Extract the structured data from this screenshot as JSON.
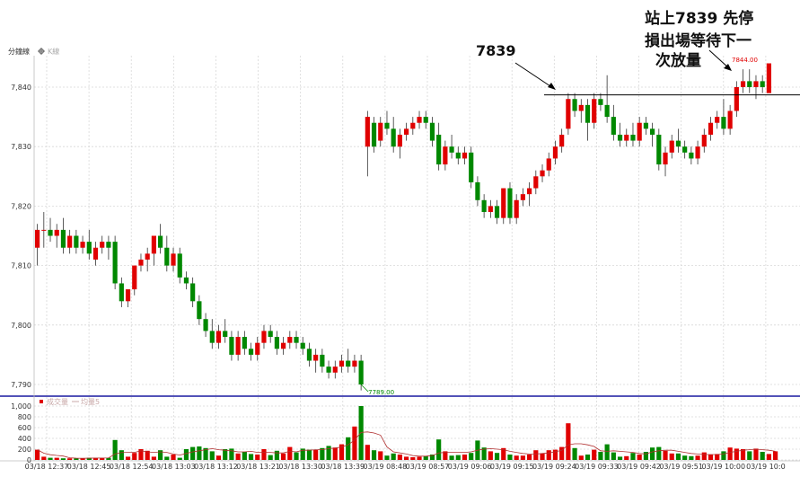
{
  "header": {
    "title": "分鐘線",
    "kline_label": "K線",
    "kline_icon": "gear-icon"
  },
  "colors": {
    "up": "#e00000",
    "down": "#008800",
    "ma_line": "#b03030",
    "separator": "#1a1aa0",
    "grid": "#d8d8d8",
    "note_line": "#000000"
  },
  "chart_data": [
    {
      "type": "candlestick",
      "title": "分鐘線",
      "ylim": [
        7788,
        7845
      ],
      "y_ticks": [
        7790,
        7800,
        7810,
        7820,
        7830,
        7840
      ],
      "y_tick_labels": [
        "7,790",
        "7,800",
        "7,810",
        "7,820",
        "7,830",
        "7,840"
      ],
      "x_tick_labels": [
        "03/18 12:37",
        "03/18 12:45",
        "03/18 12:54",
        "03/18 13:03",
        "03/18 13:12",
        "03/18 13:21",
        "03/18 13:30",
        "03/18 13:39",
        "03/19 08:48",
        "03/19 08:57",
        "03/19 09:06",
        "03/19 09:15",
        "03/19 09:24",
        "03/19 09:33",
        "03/19 09:42",
        "03/19 09:51",
        "03/19 10:00",
        "03/19 10:0"
      ],
      "grid": true,
      "candles": [
        {
          "o": 7813,
          "h": 7817,
          "l": 7810,
          "c": 7816
        },
        {
          "o": 7816,
          "h": 7819,
          "l": 7813,
          "c": 7816
        },
        {
          "o": 7816,
          "h": 7818,
          "l": 7814,
          "c": 7815
        },
        {
          "o": 7815,
          "h": 7817,
          "l": 7813,
          "c": 7816
        },
        {
          "o": 7816,
          "h": 7818,
          "l": 7812,
          "c": 7813
        },
        {
          "o": 7813,
          "h": 7816,
          "l": 7812,
          "c": 7815
        },
        {
          "o": 7815,
          "h": 7816,
          "l": 7812,
          "c": 7813
        },
        {
          "o": 7813,
          "h": 7815,
          "l": 7812,
          "c": 7814
        },
        {
          "o": 7814,
          "h": 7816,
          "l": 7811,
          "c": 7812
        },
        {
          "o": 7811,
          "h": 7814,
          "l": 7810,
          "c": 7813
        },
        {
          "o": 7813,
          "h": 7815,
          "l": 7812,
          "c": 7814
        },
        {
          "o": 7814,
          "h": 7815,
          "l": 7811,
          "c": 7813
        },
        {
          "o": 7814,
          "h": 7815,
          "l": 7806,
          "c": 7807
        },
        {
          "o": 7807,
          "h": 7808,
          "l": 7803,
          "c": 7804
        },
        {
          "o": 7804,
          "h": 7806,
          "l": 7803,
          "c": 7806
        },
        {
          "o": 7806,
          "h": 7810,
          "l": 7805,
          "c": 7810
        },
        {
          "o": 7810,
          "h": 7812,
          "l": 7809,
          "c": 7811
        },
        {
          "o": 7811,
          "h": 7813,
          "l": 7809,
          "c": 7812
        },
        {
          "o": 7812,
          "h": 7815,
          "l": 7810,
          "c": 7815
        },
        {
          "o": 7815,
          "h": 7817,
          "l": 7812,
          "c": 7813
        },
        {
          "o": 7813,
          "h": 7815,
          "l": 7809,
          "c": 7810
        },
        {
          "o": 7810,
          "h": 7813,
          "l": 7809,
          "c": 7812
        },
        {
          "o": 7812,
          "h": 7813,
          "l": 7807,
          "c": 7808
        },
        {
          "o": 7808,
          "h": 7809,
          "l": 7806,
          "c": 7807
        },
        {
          "o": 7807,
          "h": 7808,
          "l": 7803,
          "c": 7804
        },
        {
          "o": 7804,
          "h": 7805,
          "l": 7800,
          "c": 7801
        },
        {
          "o": 7801,
          "h": 7802,
          "l": 7798,
          "c": 7799
        },
        {
          "o": 7799,
          "h": 7801,
          "l": 7796,
          "c": 7797
        },
        {
          "o": 7797,
          "h": 7800,
          "l": 7796,
          "c": 7799
        },
        {
          "o": 7799,
          "h": 7801,
          "l": 7797,
          "c": 7798
        },
        {
          "o": 7798,
          "h": 7799,
          "l": 7794,
          "c": 7795
        },
        {
          "o": 7795,
          "h": 7799,
          "l": 7794,
          "c": 7798
        },
        {
          "o": 7798,
          "h": 7799,
          "l": 7795,
          "c": 7796
        },
        {
          "o": 7796,
          "h": 7797,
          "l": 7794,
          "c": 7795
        },
        {
          "o": 7795,
          "h": 7798,
          "l": 7794,
          "c": 7797
        },
        {
          "o": 7797,
          "h": 7800,
          "l": 7796,
          "c": 7799
        },
        {
          "o": 7799,
          "h": 7800,
          "l": 7797,
          "c": 7798
        },
        {
          "o": 7798,
          "h": 7799,
          "l": 7795,
          "c": 7796
        },
        {
          "o": 7796,
          "h": 7798,
          "l": 7795,
          "c": 7797
        },
        {
          "o": 7797,
          "h": 7799,
          "l": 7796,
          "c": 7798
        },
        {
          "o": 7798,
          "h": 7799,
          "l": 7796,
          "c": 7797
        },
        {
          "o": 7797,
          "h": 7798,
          "l": 7795,
          "c": 7796
        },
        {
          "o": 7796,
          "h": 7797,
          "l": 7793,
          "c": 7794
        },
        {
          "o": 7794,
          "h": 7796,
          "l": 7792,
          "c": 7795
        },
        {
          "o": 7795,
          "h": 7796,
          "l": 7792,
          "c": 7793
        },
        {
          "o": 7793,
          "h": 7794,
          "l": 7791,
          "c": 7792
        },
        {
          "o": 7792,
          "h": 7794,
          "l": 7791,
          "c": 7793
        },
        {
          "o": 7793,
          "h": 7795,
          "l": 7792,
          "c": 7794
        },
        {
          "o": 7794,
          "h": 7796,
          "l": 7792,
          "c": 7793
        },
        {
          "o": 7793,
          "h": 7795,
          "l": 7792,
          "c": 7794
        },
        {
          "o": 7794,
          "h": 7795,
          "l": 7789,
          "c": 7790
        },
        {
          "o": 7830,
          "h": 7836,
          "l": 7825,
          "c": 7835
        },
        {
          "o": 7834,
          "h": 7835,
          "l": 7829,
          "c": 7830
        },
        {
          "o": 7831,
          "h": 7835,
          "l": 7830,
          "c": 7834
        },
        {
          "o": 7834,
          "h": 7836,
          "l": 7832,
          "c": 7833
        },
        {
          "o": 7833,
          "h": 7835,
          "l": 7829,
          "c": 7830
        },
        {
          "o": 7830,
          "h": 7833,
          "l": 7828,
          "c": 7832
        },
        {
          "o": 7832,
          "h": 7834,
          "l": 7831,
          "c": 7833
        },
        {
          "o": 7833,
          "h": 7835,
          "l": 7832,
          "c": 7834
        },
        {
          "o": 7834,
          "h": 7836,
          "l": 7833,
          "c": 7835
        },
        {
          "o": 7835,
          "h": 7836,
          "l": 7833,
          "c": 7834
        },
        {
          "o": 7834,
          "h": 7835,
          "l": 7830,
          "c": 7831
        },
        {
          "o": 7832,
          "h": 7834,
          "l": 7826,
          "c": 7827
        },
        {
          "o": 7827,
          "h": 7831,
          "l": 7826,
          "c": 7830
        },
        {
          "o": 7830,
          "h": 7832,
          "l": 7828,
          "c": 7829
        },
        {
          "o": 7829,
          "h": 7830,
          "l": 7827,
          "c": 7828
        },
        {
          "o": 7828,
          "h": 7830,
          "l": 7827,
          "c": 7829
        },
        {
          "o": 7829,
          "h": 7830,
          "l": 7823,
          "c": 7824
        },
        {
          "o": 7824,
          "h": 7825,
          "l": 7820,
          "c": 7821
        },
        {
          "o": 7821,
          "h": 7822,
          "l": 7818,
          "c": 7819
        },
        {
          "o": 7819,
          "h": 7821,
          "l": 7818,
          "c": 7820
        },
        {
          "o": 7820,
          "h": 7821,
          "l": 7817,
          "c": 7818
        },
        {
          "o": 7818,
          "h": 7823,
          "l": 7817,
          "c": 7823
        },
        {
          "o": 7823,
          "h": 7824,
          "l": 7817,
          "c": 7818
        },
        {
          "o": 7818,
          "h": 7822,
          "l": 7817,
          "c": 7821
        },
        {
          "o": 7821,
          "h": 7823,
          "l": 7820,
          "c": 7822
        },
        {
          "o": 7822,
          "h": 7824,
          "l": 7820,
          "c": 7823
        },
        {
          "o": 7823,
          "h": 7826,
          "l": 7822,
          "c": 7825
        },
        {
          "o": 7825,
          "h": 7827,
          "l": 7824,
          "c": 7826
        },
        {
          "o": 7826,
          "h": 7829,
          "l": 7825,
          "c": 7828
        },
        {
          "o": 7828,
          "h": 7831,
          "l": 7827,
          "c": 7830
        },
        {
          "o": 7830,
          "h": 7833,
          "l": 7829,
          "c": 7832
        },
        {
          "o": 7833,
          "h": 7839,
          "l": 7832,
          "c": 7838
        },
        {
          "o": 7838,
          "h": 7839,
          "l": 7835,
          "c": 7836
        },
        {
          "o": 7836,
          "h": 7838,
          "l": 7834,
          "c": 7837
        },
        {
          "o": 7837,
          "h": 7838,
          "l": 7831,
          "c": 7834
        },
        {
          "o": 7834,
          "h": 7839,
          "l": 7833,
          "c": 7838
        },
        {
          "o": 7838,
          "h": 7839,
          "l": 7836,
          "c": 7837
        },
        {
          "o": 7837,
          "h": 7842,
          "l": 7834,
          "c": 7835
        },
        {
          "o": 7835,
          "h": 7837,
          "l": 7831,
          "c": 7832
        },
        {
          "o": 7832,
          "h": 7834,
          "l": 7830,
          "c": 7831
        },
        {
          "o": 7831,
          "h": 7833,
          "l": 7830,
          "c": 7832
        },
        {
          "o": 7832,
          "h": 7834,
          "l": 7830,
          "c": 7831
        },
        {
          "o": 7831,
          "h": 7835,
          "l": 7830,
          "c": 7834
        },
        {
          "o": 7834,
          "h": 7835,
          "l": 7832,
          "c": 7833
        },
        {
          "o": 7833,
          "h": 7834,
          "l": 7830,
          "c": 7832
        },
        {
          "o": 7832,
          "h": 7833,
          "l": 7826,
          "c": 7827
        },
        {
          "o": 7827,
          "h": 7830,
          "l": 7825,
          "c": 7829
        },
        {
          "o": 7829,
          "h": 7832,
          "l": 7828,
          "c": 7831
        },
        {
          "o": 7831,
          "h": 7833,
          "l": 7829,
          "c": 7830
        },
        {
          "o": 7830,
          "h": 7831,
          "l": 7828,
          "c": 7829
        },
        {
          "o": 7829,
          "h": 7830,
          "l": 7827,
          "c": 7828
        },
        {
          "o": 7828,
          "h": 7831,
          "l": 7827,
          "c": 7830
        },
        {
          "o": 7830,
          "h": 7833,
          "l": 7829,
          "c": 7832
        },
        {
          "o": 7832,
          "h": 7835,
          "l": 7831,
          "c": 7834
        },
        {
          "o": 7834,
          "h": 7836,
          "l": 7833,
          "c": 7835
        },
        {
          "o": 7835,
          "h": 7838,
          "l": 7832,
          "c": 7833
        },
        {
          "o": 7833,
          "h": 7837,
          "l": 7832,
          "c": 7836
        },
        {
          "o": 7836,
          "h": 7841,
          "l": 7835,
          "c": 7840
        },
        {
          "o": 7840,
          "h": 7843,
          "l": 7839,
          "c": 7841
        },
        {
          "o": 7841,
          "h": 7843,
          "l": 7839,
          "c": 7840
        },
        {
          "o": 7840,
          "h": 7842,
          "l": 7838,
          "c": 7841
        },
        {
          "o": 7841,
          "h": 7842,
          "l": 7839,
          "c": 7840
        },
        {
          "o": 7839,
          "h": 7844,
          "l": 7839,
          "c": 7844
        }
      ],
      "annotations": {
        "low_label": "7789.00",
        "high_label": "7844.00",
        "level_label": "7839",
        "level_value": 7839,
        "note_lines": [
          "站上7839 先停",
          "損出場等待下一",
          "次放量"
        ]
      }
    },
    {
      "type": "bar",
      "series_name": "成交量",
      "ma_name": "均量5",
      "ylim": [
        0,
        1100
      ],
      "y_ticks": [
        0,
        200,
        400,
        600,
        800,
        1000
      ],
      "y_tick_labels": [
        "0",
        "200",
        "400",
        "600",
        "800",
        "1,000"
      ],
      "volumes": [
        190,
        60,
        40,
        40,
        30,
        30,
        30,
        30,
        40,
        40,
        40,
        40,
        370,
        180,
        60,
        130,
        200,
        170,
        60,
        180,
        60,
        100,
        40,
        200,
        240,
        250,
        220,
        160,
        80,
        200,
        210,
        120,
        150,
        110,
        100,
        200,
        90,
        170,
        120,
        240,
        140,
        210,
        190,
        190,
        220,
        260,
        230,
        290,
        420,
        620,
        1000,
        280,
        180,
        160,
        80,
        120,
        100,
        60,
        50,
        60,
        70,
        100,
        380,
        160,
        80,
        90,
        100,
        130,
        360,
        230,
        160,
        130,
        220,
        100,
        80,
        80,
        100,
        180,
        120,
        180,
        190,
        240,
        680,
        220,
        80,
        100,
        190,
        150,
        290,
        140,
        60,
        70,
        130,
        100,
        150,
        230,
        240,
        170,
        120,
        120,
        80,
        70,
        80,
        140,
        100,
        110,
        160,
        230,
        210,
        200,
        160,
        210,
        150,
        110,
        160
      ],
      "volume_ma5": [
        190,
        125,
        97,
        83,
        72,
        40,
        32,
        30,
        32,
        34,
        36,
        38,
        110,
        138,
        140,
        140,
        170,
        150,
        140,
        150,
        140,
        110,
        90,
        120,
        150,
        170,
        190,
        210,
        190,
        180,
        170,
        150,
        150,
        160,
        140,
        140,
        140,
        130,
        130,
        160,
        150,
        180,
        180,
        190,
        190,
        210,
        220,
        240,
        280,
        370,
        510,
        520,
        500,
        460,
        240,
        150,
        130,
        110,
        80,
        70,
        70,
        80,
        130,
        140,
        140,
        140,
        140,
        150,
        180,
        200,
        210,
        200,
        190,
        160,
        140,
        120,
        110,
        110,
        120,
        130,
        150,
        180,
        280,
        300,
        300,
        280,
        250,
        170,
        160,
        170,
        160,
        150,
        140,
        120,
        110,
        150,
        170,
        180,
        180,
        160,
        140,
        120,
        110,
        100,
        100,
        100,
        110,
        140,
        160,
        180,
        190,
        200,
        190,
        180,
        160
      ]
    }
  ]
}
